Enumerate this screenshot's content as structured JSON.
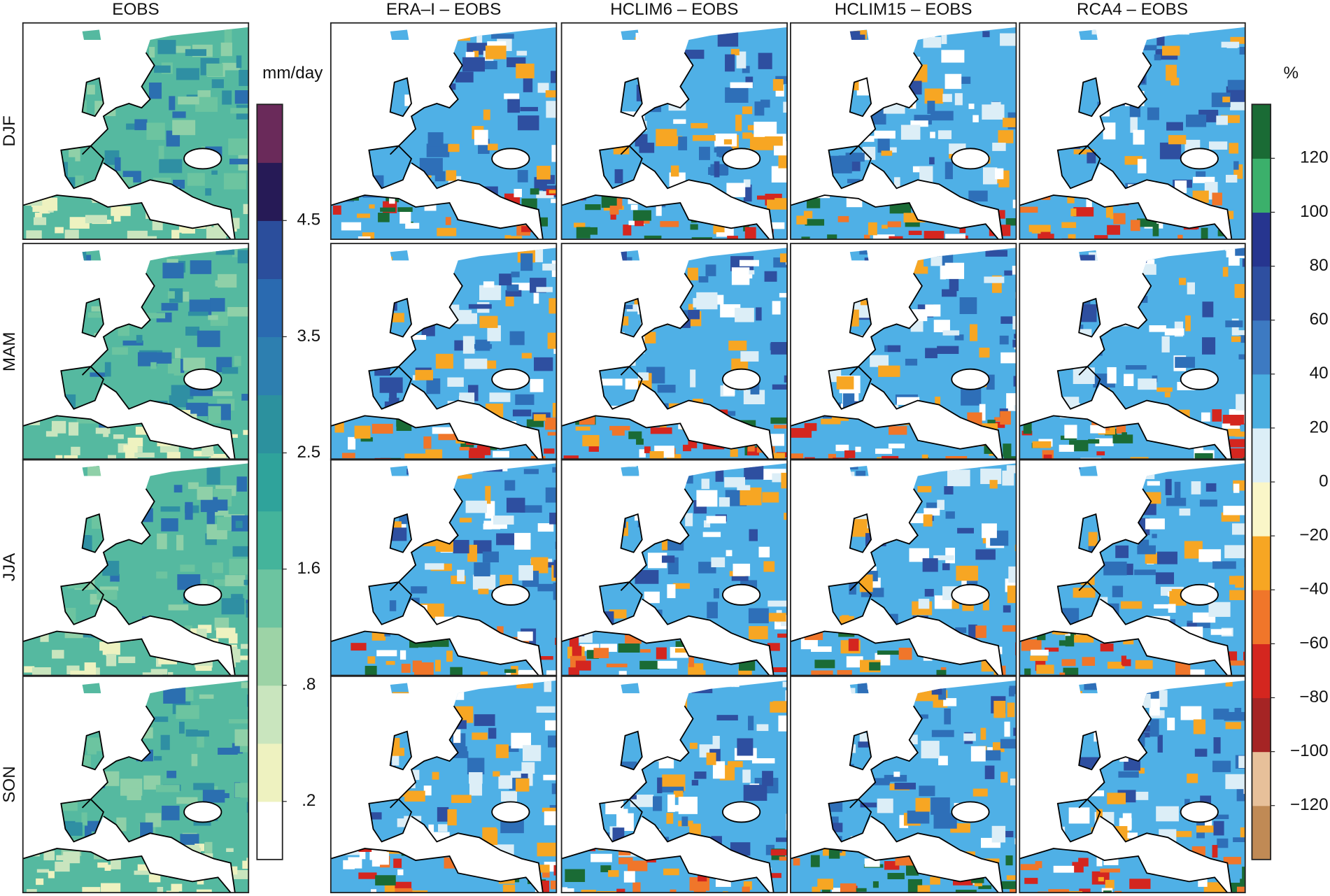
{
  "figure": {
    "column_titles": [
      "EOBS",
      "ERA–I – EOBS",
      "HCLIM6 – EOBS",
      "HCLIM15 – EOBS",
      "RCA4 – EOBS"
    ],
    "row_labels": [
      "DJF",
      "MAM",
      "JJA",
      "SON"
    ],
    "colorbars": [
      {
        "unit": "mm/day",
        "colors": [
          "#ffffff",
          "#eef2c0",
          "#c9e5be",
          "#9dd3a6",
          "#6cc4a0",
          "#44b49b",
          "#2fa39b",
          "#2c919e",
          "#2d7fb0",
          "#2a6ab0",
          "#2b4e9c",
          "#261a56",
          "#6a2a5a"
        ],
        "ticks": [
          {
            "value": 0.2,
            "label": ".2"
          },
          {
            "value": 0.8,
            "label": ".8"
          },
          1.6,
          2.5,
          3.5,
          4.5
        ]
      },
      {
        "unit": "%",
        "colors": [
          "#c08a55",
          "#e7c09a",
          "#a52424",
          "#d4261f",
          "#f0762a",
          "#f7a623",
          "#faf6c8",
          "#dceef7",
          "#4aaee0",
          "#3d7ac2",
          "#2e4fa0",
          "#26358f",
          "#3bb06b",
          "#1a6b35"
        ],
        "ticks": [
          {
            "value": -120,
            "label": "−120"
          },
          {
            "value": -100,
            "label": "−100"
          },
          {
            "value": -80,
            "label": "−80"
          },
          {
            "value": -60,
            "label": "−60"
          },
          {
            "value": -40,
            "label": "−40"
          },
          {
            "value": -20,
            "label": "−20"
          },
          0,
          20,
          40,
          60,
          80,
          100,
          120
        ]
      }
    ]
  }
}
